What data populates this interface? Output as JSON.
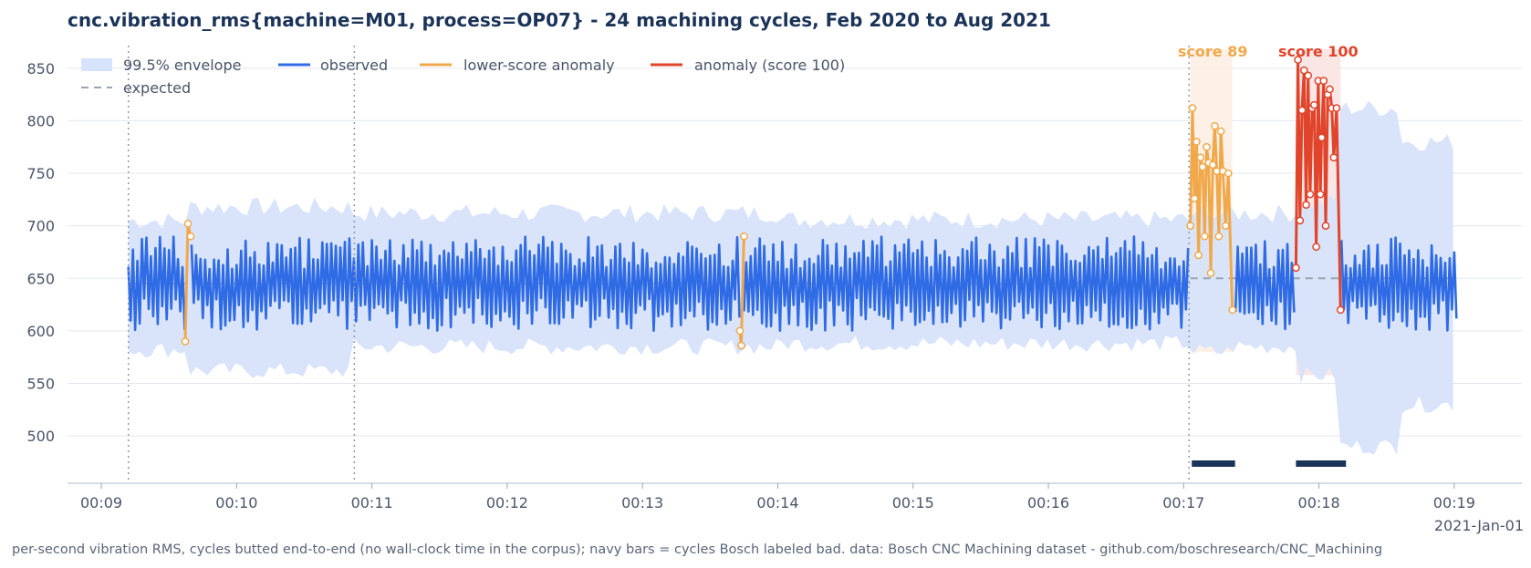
{
  "chart_data": {
    "type": "line",
    "title": "cnc.vibration_rms{machine=M01, process=OP07} - 24 machining cycles, Feb 2020 to Aug 2021",
    "footer": "per-second vibration RMS, cycles butted end-to-end (no wall-clock time in the corpus); navy bars = cycles Bosch labeled bad. data: Bosch CNC Machining dataset - github.com/boschresearch/CNC_Machining",
    "date_label": "2021-Jan-01",
    "x_ticks": [
      "00:09",
      "00:10",
      "00:11",
      "00:12",
      "00:13",
      "00:14",
      "00:15",
      "00:16",
      "00:17",
      "00:18",
      "00:19"
    ],
    "x_range_minutes": [
      8.75,
      19.5
    ],
    "x_start_minute": 9.2,
    "x_end_minute": 19.02,
    "y_ticks": [
      500,
      550,
      600,
      650,
      700,
      750,
      800,
      850
    ],
    "ylim": [
      455,
      875
    ],
    "grid": true,
    "legend_placement": "top-left",
    "legend": {
      "envelope": "99.5% envelope",
      "observed": "observed",
      "lower": "lower-score anomaly",
      "anomaly": "anomaly (score 100)",
      "expected": "expected"
    },
    "expected": {
      "value": 645,
      "late_value": 650,
      "late_from_minute": 17.05
    },
    "envelope": {
      "regular_low": 585,
      "regular_high": 710,
      "segments": [
        {
          "from": 9.2,
          "to": 9.65,
          "low": 582,
          "high": 705
        },
        {
          "from": 9.65,
          "to": 10.85,
          "low": 562,
          "high": 718
        },
        {
          "from": 10.85,
          "to": 14.0,
          "low": 585,
          "high": 712
        },
        {
          "from": 14.0,
          "to": 17.05,
          "low": 588,
          "high": 706
        },
        {
          "from": 17.05,
          "to": 17.35,
          "low": 580,
          "high": 712
        },
        {
          "from": 17.35,
          "to": 17.85,
          "low": 585,
          "high": 712
        },
        {
          "from": 17.85,
          "to": 18.15,
          "low": 558,
          "high": 722
        },
        {
          "from": 18.15,
          "to": 18.6,
          "low": 490,
          "high": 812
        },
        {
          "from": 18.6,
          "to": 19.02,
          "low": 530,
          "high": 780
        }
      ]
    },
    "dividers_minutes": [
      9.2,
      10.87,
      17.04
    ],
    "observed": {
      "mean": 645,
      "amplitude": 45,
      "points_per_minute": 60,
      "seed": 7
    },
    "lower_score_anomalies": [
      {
        "from": 9.62,
        "to": 9.66,
        "points": [
          [
            9.62,
            590
          ],
          [
            9.64,
            702
          ],
          [
            9.66,
            690
          ]
        ]
      },
      {
        "from": 13.72,
        "to": 13.75,
        "points": [
          [
            13.72,
            600
          ],
          [
            13.73,
            586
          ],
          [
            13.75,
            690
          ]
        ]
      },
      {
        "from": 17.05,
        "to": 17.38,
        "score": "score 89",
        "points": [
          [
            17.05,
            700
          ],
          [
            17.065,
            812
          ],
          [
            17.08,
            726
          ],
          [
            17.095,
            780
          ],
          [
            17.11,
            672
          ],
          [
            17.125,
            765
          ],
          [
            17.14,
            756
          ],
          [
            17.155,
            690
          ],
          [
            17.17,
            775
          ],
          [
            17.185,
            760
          ],
          [
            17.2,
            655
          ],
          [
            17.215,
            758
          ],
          [
            17.23,
            795
          ],
          [
            17.245,
            752
          ],
          [
            17.26,
            690
          ],
          [
            17.275,
            790
          ],
          [
            17.29,
            752
          ],
          [
            17.31,
            700
          ],
          [
            17.33,
            750
          ],
          [
            17.36,
            620
          ]
        ]
      }
    ],
    "score_100_anomaly": {
      "from": 17.83,
      "to": 18.16,
      "score": "score 100",
      "points": [
        [
          17.83,
          660
        ],
        [
          17.845,
          858
        ],
        [
          17.86,
          705
        ],
        [
          17.875,
          810
        ],
        [
          17.89,
          848
        ],
        [
          17.905,
          720
        ],
        [
          17.92,
          843
        ],
        [
          17.935,
          730
        ],
        [
          17.95,
          812
        ],
        [
          17.965,
          815
        ],
        [
          17.98,
          680
        ],
        [
          17.995,
          838
        ],
        [
          18.01,
          730
        ],
        [
          18.02,
          784
        ],
        [
          18.035,
          838
        ],
        [
          18.05,
          700
        ],
        [
          18.065,
          825
        ],
        [
          18.08,
          830
        ],
        [
          18.095,
          812
        ],
        [
          18.11,
          765
        ],
        [
          18.13,
          812
        ],
        [
          18.16,
          620
        ]
      ]
    },
    "shaded_regions": [
      {
        "from": 17.05,
        "to": 17.36,
        "low": 580,
        "color": "#fdf0e4"
      },
      {
        "from": 17.83,
        "to": 18.16,
        "low": 558,
        "color": "#fbe3e3"
      }
    ],
    "bad_cycle_bars": [
      {
        "from": 17.06,
        "to": 17.38
      },
      {
        "from": 17.83,
        "to": 18.2
      }
    ],
    "colors": {
      "observed": "#2f6be5",
      "envelope": "#d7e3fa",
      "lower": "#f0a84b",
      "anomaly": "#e0442b",
      "expected": "#9aa3af",
      "bars": "#1b3358",
      "divider": "#9098b0",
      "grid": "#e3e7ee"
    }
  }
}
